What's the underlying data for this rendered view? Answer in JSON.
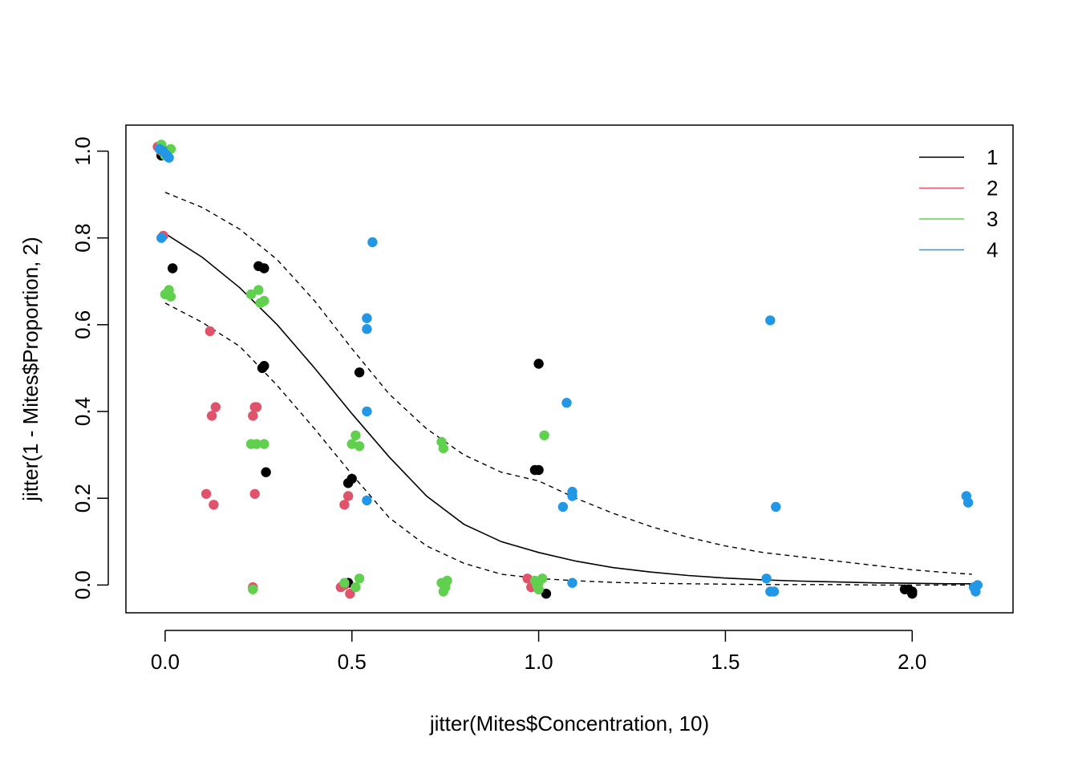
{
  "chart_data": {
    "type": "scatter",
    "title": "",
    "xlabel": "jitter(Mites$Concentration, 10)",
    "ylabel": "jitter(1 - Mites$Proportion, 2)",
    "xlim": [
      -0.105,
      2.27
    ],
    "ylim": [
      -0.064,
      1.06
    ],
    "x_ticks": [
      "0.0",
      "0.5",
      "1.0",
      "1.5",
      "2.0"
    ],
    "y_ticks": [
      "0.0",
      "0.2",
      "0.4",
      "0.6",
      "0.8",
      "1.0"
    ],
    "grid": false,
    "legend": {
      "position": "top-right",
      "entries": [
        {
          "label": "1",
          "color": "#000000"
        },
        {
          "label": "2",
          "color": "#DF536B"
        },
        {
          "label": "3",
          "color": "#61D04F"
        },
        {
          "label": "4",
          "color": "#2297E6"
        }
      ]
    },
    "series": [
      {
        "name": "1",
        "color": "#000000",
        "points": [
          [
            0.0,
            1.0
          ],
          [
            -0.01,
            0.99
          ],
          [
            0.02,
            0.73
          ],
          [
            0.25,
            0.735
          ],
          [
            0.265,
            0.73
          ],
          [
            0.26,
            0.5
          ],
          [
            0.265,
            0.505
          ],
          [
            0.52,
            0.49
          ],
          [
            0.27,
            0.26
          ],
          [
            0.49,
            0.235
          ],
          [
            0.5,
            0.245
          ],
          [
            0.49,
            0.005
          ],
          [
            1.0,
            0.51
          ],
          [
            0.99,
            0.265
          ],
          [
            1.0,
            0.265
          ],
          [
            1.02,
            -0.02
          ],
          [
            1.99,
            -0.01
          ],
          [
            2.0,
            -0.02
          ],
          [
            2.0,
            -0.015
          ],
          [
            1.98,
            -0.01
          ]
        ]
      },
      {
        "name": "2",
        "color": "#DF536B",
        "points": [
          [
            -0.02,
            1.01
          ],
          [
            -0.01,
            1.0
          ],
          [
            0.0,
            0.995
          ],
          [
            -0.005,
            0.805
          ],
          [
            0.12,
            0.585
          ],
          [
            0.125,
            0.39
          ],
          [
            0.135,
            0.41
          ],
          [
            0.11,
            0.21
          ],
          [
            0.13,
            0.185
          ],
          [
            0.235,
            0.39
          ],
          [
            0.24,
            0.41
          ],
          [
            0.245,
            0.41
          ],
          [
            0.24,
            0.21
          ],
          [
            0.235,
            -0.005
          ],
          [
            0.48,
            0.185
          ],
          [
            0.49,
            0.205
          ],
          [
            0.47,
            -0.005
          ],
          [
            0.495,
            -0.02
          ],
          [
            0.48,
            0.0
          ],
          [
            0.97,
            0.015
          ],
          [
            0.98,
            -0.005
          ],
          [
            0.99,
            0.0
          ],
          [
            1.0,
            -0.01
          ]
        ]
      },
      {
        "name": "3",
        "color": "#61D04F",
        "points": [
          [
            -0.01,
            1.015
          ],
          [
            0.015,
            1.005
          ],
          [
            0.0,
            0.99
          ],
          [
            0.01,
            0.68
          ],
          [
            0.0,
            0.67
          ],
          [
            0.015,
            0.665
          ],
          [
            0.23,
            0.67
          ],
          [
            0.25,
            0.68
          ],
          [
            0.255,
            0.65
          ],
          [
            0.265,
            0.655
          ],
          [
            0.23,
            0.325
          ],
          [
            0.245,
            0.325
          ],
          [
            0.265,
            0.325
          ],
          [
            0.235,
            -0.01
          ],
          [
            0.5,
            0.325
          ],
          [
            0.51,
            0.345
          ],
          [
            0.52,
            0.32
          ],
          [
            0.48,
            0.005
          ],
          [
            0.52,
            0.015
          ],
          [
            0.51,
            -0.005
          ],
          [
            0.74,
            0.33
          ],
          [
            0.745,
            0.315
          ],
          [
            0.74,
            0.005
          ],
          [
            0.75,
            0.0
          ],
          [
            0.755,
            0.01
          ],
          [
            0.745,
            -0.015
          ],
          [
            0.75,
            -0.005
          ],
          [
            0.99,
            0.01
          ],
          [
            1.0,
            0.005
          ],
          [
            1.01,
            0.015
          ],
          [
            1.0,
            -0.01
          ],
          [
            0.995,
            0.0
          ],
          [
            1.015,
            0.345
          ]
        ]
      },
      {
        "name": "4",
        "color": "#2297E6",
        "points": [
          [
            -0.015,
            1.005
          ],
          [
            -0.005,
            1.0
          ],
          [
            0.005,
            0.99
          ],
          [
            0.01,
            0.985
          ],
          [
            -0.01,
            0.8
          ],
          [
            0.555,
            0.79
          ],
          [
            0.54,
            0.615
          ],
          [
            0.54,
            0.59
          ],
          [
            0.54,
            0.4
          ],
          [
            0.54,
            0.195
          ],
          [
            1.075,
            0.42
          ],
          [
            1.09,
            0.215
          ],
          [
            1.09,
            0.205
          ],
          [
            1.065,
            0.18
          ],
          [
            1.09,
            0.005
          ],
          [
            1.62,
            0.61
          ],
          [
            1.635,
            0.18
          ],
          [
            1.61,
            0.015
          ],
          [
            1.62,
            -0.015
          ],
          [
            1.63,
            -0.015
          ],
          [
            2.145,
            0.205
          ],
          [
            2.15,
            0.19
          ],
          [
            2.175,
            0.0
          ],
          [
            2.165,
            -0.005
          ],
          [
            2.17,
            -0.015
          ]
        ]
      }
    ],
    "fit_curve": {
      "name": "fitted",
      "color": "#000000",
      "x": [
        0.0,
        0.1,
        0.2,
        0.3,
        0.4,
        0.5,
        0.6,
        0.7,
        0.8,
        0.9,
        1.0,
        1.1,
        1.2,
        1.3,
        1.4,
        1.5,
        1.6,
        1.7,
        1.8,
        1.9,
        2.0,
        2.1,
        2.16
      ],
      "y": [
        0.81,
        0.755,
        0.685,
        0.6,
        0.5,
        0.395,
        0.295,
        0.205,
        0.14,
        0.1,
        0.075,
        0.055,
        0.04,
        0.03,
        0.022,
        0.016,
        0.012,
        0.009,
        0.007,
        0.005,
        0.004,
        0.003,
        0.003
      ],
      "upper": [
        0.905,
        0.87,
        0.82,
        0.75,
        0.655,
        0.545,
        0.44,
        0.36,
        0.3,
        0.26,
        0.24,
        0.2,
        0.165,
        0.135,
        0.11,
        0.09,
        0.075,
        0.065,
        0.055,
        0.045,
        0.035,
        0.028,
        0.025
      ],
      "lower": [
        0.65,
        0.605,
        0.55,
        0.46,
        0.36,
        0.255,
        0.155,
        0.09,
        0.05,
        0.025,
        0.015,
        0.01,
        0.006,
        0.004,
        0.003,
        0.002,
        0.001,
        0.001,
        0.001,
        0.0,
        0.0,
        0.0,
        0.0
      ]
    }
  }
}
